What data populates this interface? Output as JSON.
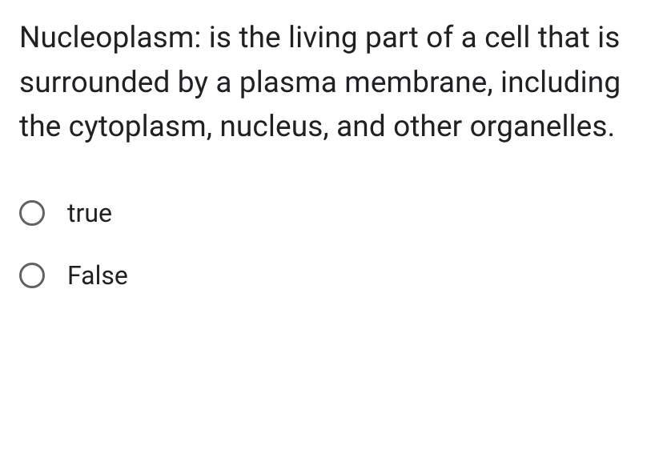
{
  "question": {
    "text": "Nucleoplasm: is the living part of a cell that is surrounded by a plasma membrane, including the cytoplasm, nucleus, and other organelles.",
    "text_color": "#202124",
    "font_size": 37
  },
  "options": [
    {
      "label": "true",
      "selected": false
    },
    {
      "label": "False",
      "selected": false
    }
  ],
  "styling": {
    "background_color": "#ffffff",
    "radio_border_color": "#5f6368",
    "radio_size": 32,
    "option_font_size": 32,
    "option_text_color": "#202124"
  }
}
